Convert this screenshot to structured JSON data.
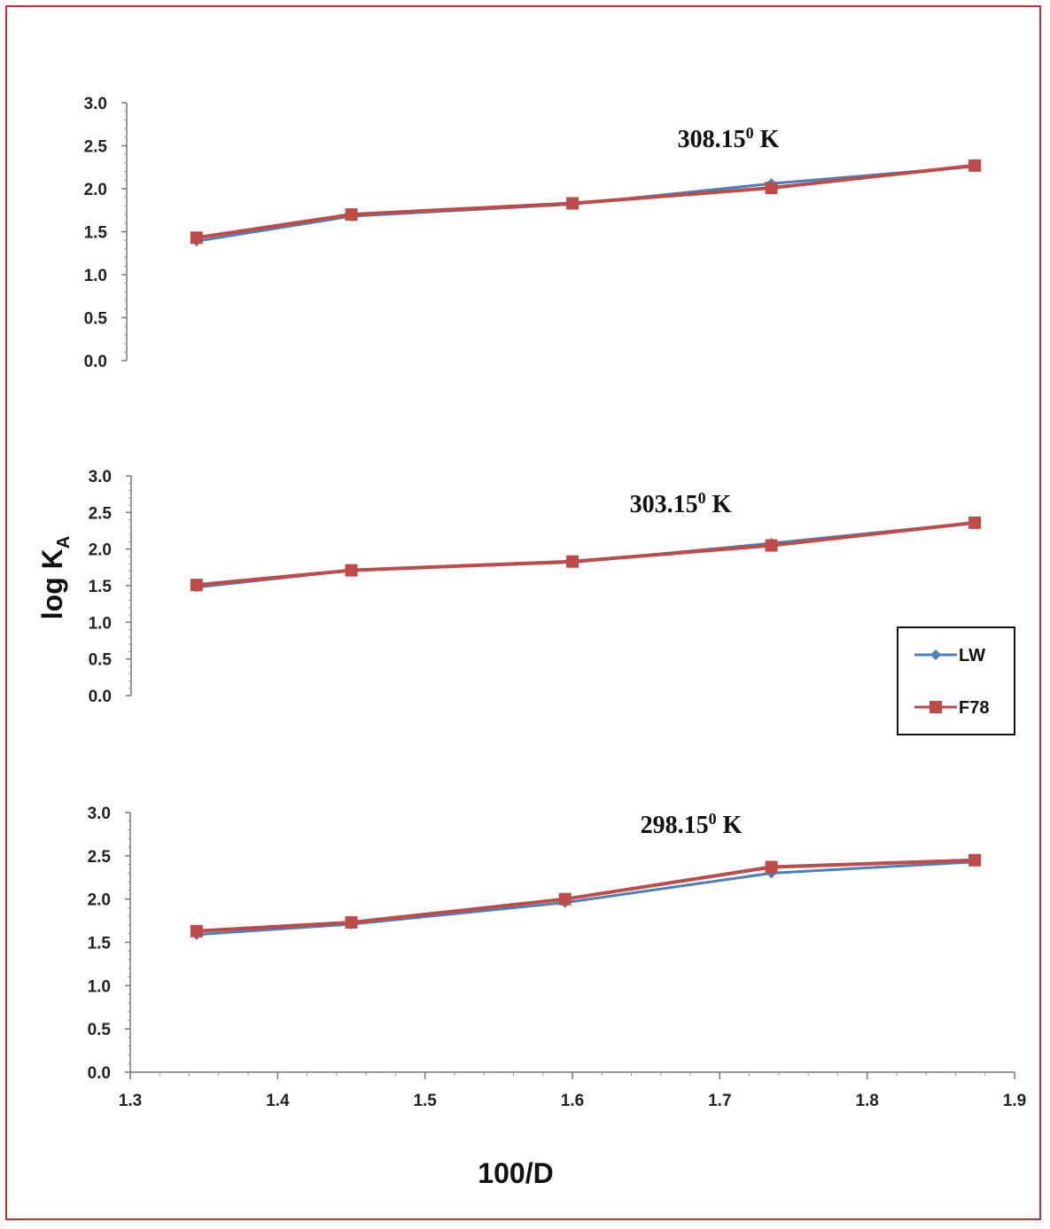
{
  "chart_data": {
    "type": "line",
    "xlabel": "100/D",
    "ylabel_main": "log K",
    "ylabel_sub": "A",
    "xlim": [
      1.3,
      1.9
    ],
    "ylim": [
      0,
      3.0
    ],
    "x_ticks": [
      "1.3",
      "1.4",
      "1.5",
      "1.6",
      "1.7",
      "1.8",
      "1.9"
    ],
    "y_ticks": [
      "0.0",
      "0.5",
      "1.0",
      "1.5",
      "2.0",
      "2.5",
      "3.0"
    ],
    "legend": {
      "placement": "right",
      "entries": [
        "LW",
        "F78"
      ]
    },
    "series_colors": {
      "LW": "#4a7ebf",
      "F78": "#be4b48"
    },
    "panels": [
      {
        "label_main": "308.15",
        "label_sup": "0",
        "label_unit": " K",
        "series": [
          {
            "name": "LW",
            "marker": "diamond",
            "x": [
              1.345,
              1.45,
              1.6,
              1.735,
              1.873
            ],
            "y": [
              1.39,
              1.68,
              1.82,
              2.06,
              2.26
            ]
          },
          {
            "name": "F78",
            "marker": "square",
            "x": [
              1.345,
              1.45,
              1.6,
              1.735,
              1.873
            ],
            "y": [
              1.43,
              1.7,
              1.83,
              2.01,
              2.27
            ]
          }
        ]
      },
      {
        "label_main": "303.15",
        "label_sup": "0",
        "label_unit": " K",
        "series": [
          {
            "name": "LW",
            "marker": "diamond",
            "x": [
              1.345,
              1.45,
              1.6,
              1.735,
              1.873
            ],
            "y": [
              1.48,
              1.71,
              1.82,
              2.08,
              2.36
            ]
          },
          {
            "name": "F78",
            "marker": "square",
            "x": [
              1.345,
              1.45,
              1.6,
              1.735,
              1.873
            ],
            "y": [
              1.51,
              1.71,
              1.83,
              2.05,
              2.36
            ]
          }
        ]
      },
      {
        "label_main": "298.15",
        "label_sup": "0",
        "label_unit": " K",
        "series": [
          {
            "name": "LW",
            "marker": "diamond",
            "x": [
              1.345,
              1.45,
              1.595,
              1.735,
              1.873
            ],
            "y": [
              1.59,
              1.71,
              1.96,
              2.3,
              2.43
            ]
          },
          {
            "name": "F78",
            "marker": "square",
            "x": [
              1.345,
              1.45,
              1.595,
              1.735,
              1.873
            ],
            "y": [
              1.63,
              1.73,
              2.0,
              2.37,
              2.45
            ]
          }
        ]
      }
    ]
  }
}
